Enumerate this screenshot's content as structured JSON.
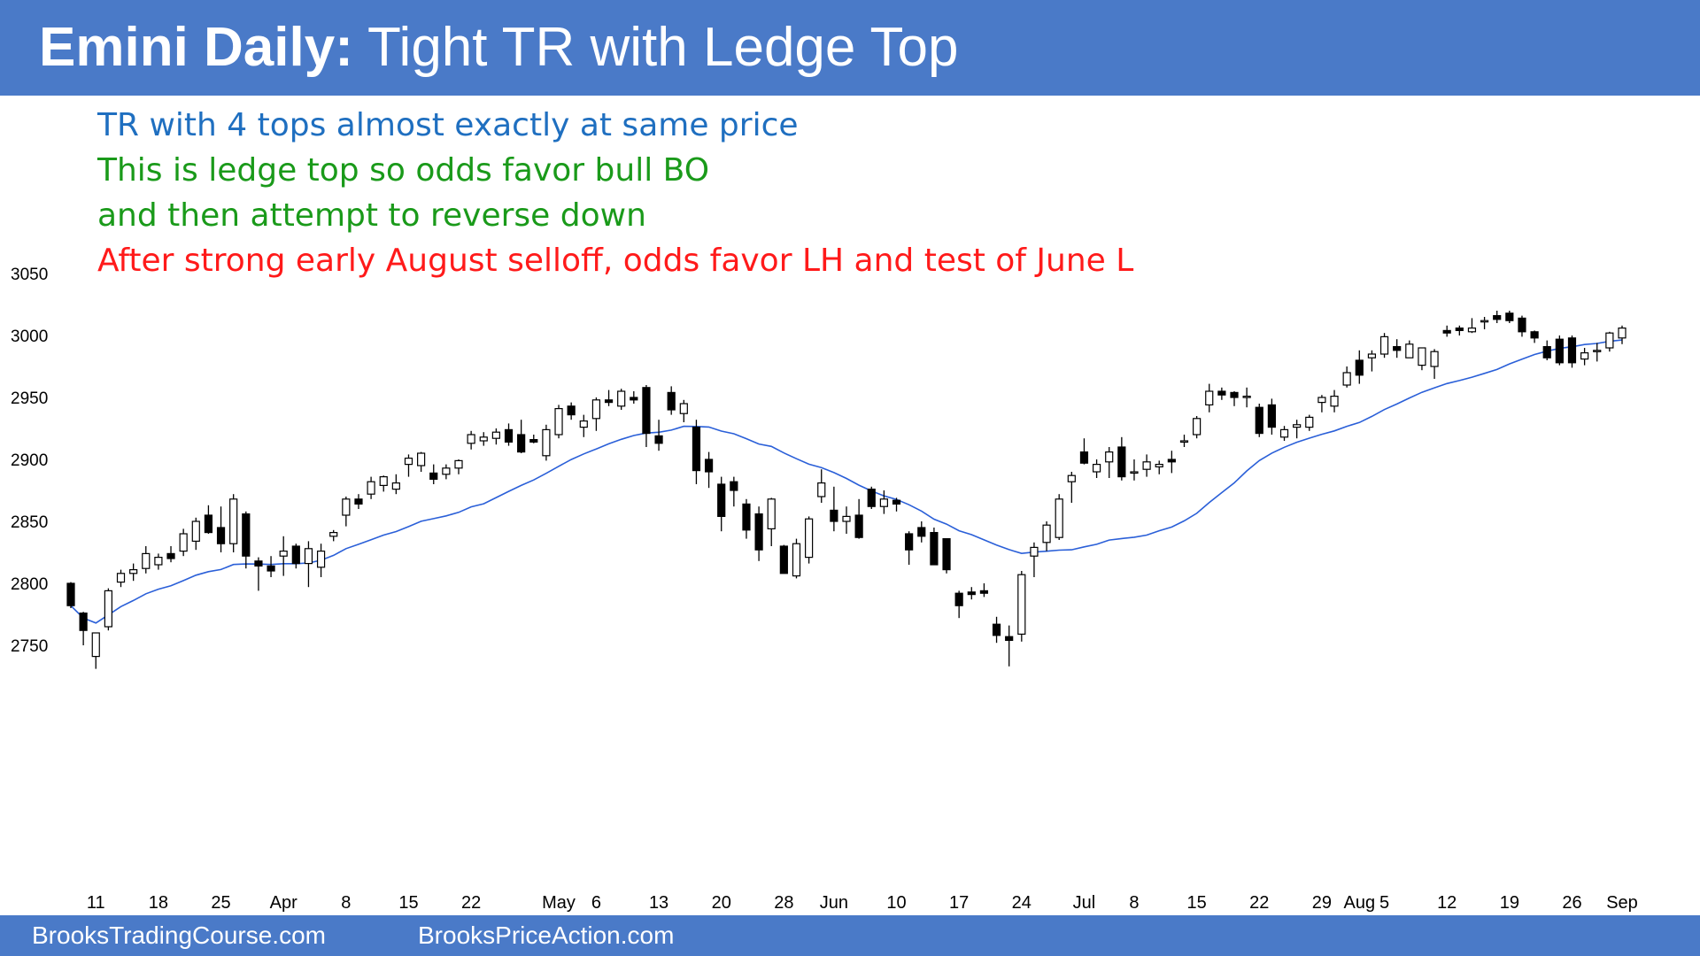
{
  "header": {
    "title_bold": "Emini Daily:",
    "title_rest": "Tight TR with Ledge Top"
  },
  "notes": [
    {
      "text": "TR with 4 tops almost exactly at same price",
      "color": "#1f6fc0"
    },
    {
      "text": "This is ledge top so odds favor bull BO",
      "color": "#1a9a1a"
    },
    {
      "text": "and then attempt to reverse down",
      "color": "#1a9a1a"
    },
    {
      "text": "After strong early August selloff, odds favor LH and test of June L",
      "color": "#ff1a1a"
    }
  ],
  "footer": {
    "left_link": "BrooksTradingCourse.com",
    "right_link": "BrooksPriceAction.com"
  },
  "chart_data": {
    "type": "candlestick",
    "ylim": [
      2720,
      3060
    ],
    "y_ticks": [
      2750,
      2800,
      2850,
      2900,
      2950,
      3000,
      3050
    ],
    "x_ticks": [
      {
        "label": "11",
        "date": "2019-03-11"
      },
      {
        "label": "18",
        "date": "2019-03-18"
      },
      {
        "label": "25",
        "date": "2019-03-25"
      },
      {
        "label": "Apr",
        "date": "2019-04-01"
      },
      {
        "label": "8",
        "date": "2019-04-08"
      },
      {
        "label": "15",
        "date": "2019-04-15"
      },
      {
        "label": "22",
        "date": "2019-04-22"
      },
      {
        "label": "May",
        "date": "2019-05-01"
      },
      {
        "label": "6",
        "date": "2019-05-06"
      },
      {
        "label": "13",
        "date": "2019-05-13"
      },
      {
        "label": "20",
        "date": "2019-05-20"
      },
      {
        "label": "28",
        "date": "2019-05-28"
      },
      {
        "label": "Jun",
        "date": "2019-06-03"
      },
      {
        "label": "10",
        "date": "2019-06-10"
      },
      {
        "label": "17",
        "date": "2019-06-17"
      },
      {
        "label": "24",
        "date": "2019-06-24"
      },
      {
        "label": "Jul",
        "date": "2019-07-01"
      },
      {
        "label": "8",
        "date": "2019-07-08"
      },
      {
        "label": "15",
        "date": "2019-07-15"
      },
      {
        "label": "22",
        "date": "2019-07-22"
      },
      {
        "label": "29",
        "date": "2019-07-29"
      },
      {
        "label": "Aug",
        "date": "2019-08-01"
      },
      {
        "label": "5",
        "date": "2019-08-05"
      },
      {
        "label": "12",
        "date": "2019-08-12"
      },
      {
        "label": "19",
        "date": "2019-08-19"
      },
      {
        "label": "26",
        "date": "2019-08-26"
      },
      {
        "label": "Sep",
        "date": "2019-09-03"
      }
    ],
    "candle_color_up": "#ffffff",
    "candle_color_down": "#000000",
    "ohlc": [
      [
        "2019-03-07",
        2800,
        2801,
        2780,
        2782
      ],
      [
        "2019-03-08",
        2776,
        2777,
        2750,
        2762
      ],
      [
        "2019-03-11",
        2741,
        2760,
        2731,
        2760
      ],
      [
        "2019-03-12",
        2765,
        2796,
        2762,
        2794
      ],
      [
        "2019-03-13",
        2801,
        2811,
        2797,
        2808
      ],
      [
        "2019-03-14",
        2808,
        2816,
        2802,
        2811
      ],
      [
        "2019-03-15",
        2812,
        2830,
        2808,
        2824
      ],
      [
        "2019-03-18",
        2815,
        2824,
        2811,
        2821
      ],
      [
        "2019-03-19",
        2824,
        2830,
        2817,
        2820
      ],
      [
        "2019-03-20",
        2826,
        2844,
        2822,
        2840
      ],
      [
        "2019-03-21",
        2834,
        2853,
        2827,
        2850
      ],
      [
        "2019-03-22",
        2855,
        2863,
        2840,
        2841
      ],
      [
        "2019-03-25",
        2845,
        2862,
        2825,
        2832
      ],
      [
        "2019-03-26",
        2832,
        2872,
        2825,
        2868
      ],
      [
        "2019-03-27",
        2856,
        2858,
        2812,
        2822
      ],
      [
        "2019-03-28",
        2818,
        2821,
        2794,
        2814
      ],
      [
        "2019-03-29",
        2814,
        2822,
        2805,
        2810
      ],
      [
        "2019-04-01",
        2822,
        2838,
        2806,
        2826
      ],
      [
        "2019-04-02",
        2830,
        2832,
        2812,
        2816
      ],
      [
        "2019-04-03",
        2816,
        2834,
        2797,
        2828
      ],
      [
        "2019-04-04",
        2813,
        2832,
        2805,
        2826
      ],
      [
        "2019-04-05",
        2838,
        2843,
        2834,
        2841
      ],
      [
        "2019-04-08",
        2855,
        2870,
        2846,
        2868
      ],
      [
        "2019-04-09",
        2868,
        2872,
        2860,
        2864
      ],
      [
        "2019-04-10",
        2872,
        2886,
        2868,
        2882
      ],
      [
        "2019-04-11",
        2879,
        2887,
        2874,
        2886
      ],
      [
        "2019-04-12",
        2876,
        2888,
        2872,
        2881
      ],
      [
        "2019-04-15",
        2896,
        2904,
        2886,
        2901
      ],
      [
        "2019-04-16",
        2895,
        2906,
        2890,
        2905
      ],
      [
        "2019-04-17",
        2889,
        2896,
        2880,
        2884
      ],
      [
        "2019-04-18",
        2888,
        2896,
        2884,
        2893
      ],
      [
        "2019-04-19",
        2893,
        2900,
        2888,
        2899
      ],
      [
        "2019-04-22",
        2913,
        2923,
        2908,
        2920
      ],
      [
        "2019-04-23",
        2915,
        2922,
        2911,
        2918
      ],
      [
        "2019-04-24",
        2917,
        2925,
        2912,
        2922
      ],
      [
        "2019-04-25",
        2924,
        2929,
        2911,
        2914
      ],
      [
        "2019-04-26",
        2920,
        2932,
        2905,
        2906
      ],
      [
        "2019-04-29",
        2916,
        2920,
        2913,
        2914
      ],
      [
        "2019-04-30",
        2903,
        2928,
        2899,
        2924
      ],
      [
        "2019-05-01",
        2920,
        2944,
        2917,
        2941
      ],
      [
        "2019-05-02",
        2943,
        2946,
        2932,
        2936
      ],
      [
        "2019-05-03",
        2926,
        2936,
        2918,
        2931
      ],
      [
        "2019-05-06",
        2933,
        2950,
        2923,
        2948
      ],
      [
        "2019-05-07",
        2948,
        2956,
        2943,
        2946
      ],
      [
        "2019-05-08",
        2943,
        2957,
        2940,
        2955
      ],
      [
        "2019-05-09",
        2950,
        2955,
        2945,
        2948
      ],
      [
        "2019-05-10",
        2958,
        2960,
        2910,
        2921
      ],
      [
        "2019-05-13",
        2919,
        2932,
        2907,
        2913
      ],
      [
        "2019-05-14",
        2954,
        2959,
        2936,
        2940
      ],
      [
        "2019-05-15",
        2937,
        2948,
        2930,
        2945
      ],
      [
        "2019-05-16",
        2926,
        2932,
        2880,
        2891
      ],
      [
        "2019-05-17",
        2900,
        2906,
        2877,
        2890
      ],
      [
        "2019-05-20",
        2880,
        2886,
        2842,
        2854
      ],
      [
        "2019-05-21",
        2882,
        2886,
        2862,
        2875
      ],
      [
        "2019-05-22",
        2864,
        2868,
        2836,
        2843
      ],
      [
        "2019-05-23",
        2856,
        2862,
        2818,
        2827
      ],
      [
        "2019-05-24",
        2844,
        2869,
        2830,
        2868
      ],
      [
        "2019-05-28",
        2830,
        2831,
        2808,
        2808
      ],
      [
        "2019-05-29",
        2806,
        2836,
        2804,
        2832
      ],
      [
        "2019-05-30",
        2821,
        2854,
        2816,
        2852
      ],
      [
        "2019-05-31",
        2870,
        2892,
        2865,
        2881
      ],
      [
        "2019-06-03",
        2859,
        2878,
        2842,
        2850
      ],
      [
        "2019-06-04",
        2850,
        2862,
        2840,
        2854
      ],
      [
        "2019-06-05",
        2855,
        2868,
        2836,
        2837
      ],
      [
        "2019-06-06",
        2876,
        2878,
        2860,
        2862
      ],
      [
        "2019-06-07",
        2862,
        2875,
        2856,
        2868
      ],
      [
        "2019-06-10",
        2867,
        2869,
        2858,
        2864
      ],
      [
        "2019-06-11",
        2840,
        2842,
        2815,
        2827
      ],
      [
        "2019-06-12",
        2845,
        2850,
        2833,
        2838
      ],
      [
        "2019-06-13",
        2841,
        2845,
        2815,
        2815
      ],
      [
        "2019-06-14",
        2836,
        2836,
        2808,
        2811
      ],
      [
        "2019-06-17",
        2792,
        2794,
        2772,
        2782
      ],
      [
        "2019-06-18",
        2793,
        2797,
        2787,
        2791
      ],
      [
        "2019-06-19",
        2794,
        2800,
        2789,
        2792
      ],
      [
        "2019-06-20",
        2767,
        2773,
        2752,
        2758
      ],
      [
        "2019-06-21",
        2757,
        2766,
        2733,
        2754
      ],
      [
        "2019-06-24",
        2759,
        2810,
        2753,
        2807
      ],
      [
        "2019-06-25",
        2822,
        2833,
        2805,
        2829
      ],
      [
        "2019-06-26",
        2833,
        2850,
        2826,
        2847
      ],
      [
        "2019-06-27",
        2837,
        2872,
        2835,
        2868
      ],
      [
        "2019-06-28",
        2882,
        2890,
        2865,
        2887
      ],
      [
        "2019-07-01",
        2906,
        2917,
        2896,
        2897
      ],
      [
        "2019-07-02",
        2890,
        2900,
        2885,
        2896
      ],
      [
        "2019-07-03",
        2898,
        2910,
        2885,
        2906
      ],
      [
        "2019-07-05",
        2910,
        2918,
        2883,
        2886
      ],
      [
        "2019-07-08",
        2890,
        2900,
        2883,
        2890
      ],
      [
        "2019-07-09",
        2892,
        2904,
        2886,
        2898
      ],
      [
        "2019-07-10",
        2894,
        2899,
        2888,
        2896
      ],
      [
        "2019-07-11",
        2900,
        2907,
        2889,
        2898
      ],
      [
        "2019-07-12",
        2914,
        2920,
        2910,
        2915
      ],
      [
        "2019-07-15",
        2920,
        2935,
        2917,
        2933
      ],
      [
        "2019-07-16",
        2944,
        2961,
        2938,
        2955
      ],
      [
        "2019-07-17",
        2955,
        2958,
        2948,
        2952
      ],
      [
        "2019-07-18",
        2954,
        2955,
        2943,
        2950
      ],
      [
        "2019-07-19",
        2950,
        2958,
        2942,
        2951
      ],
      [
        "2019-07-22",
        2942,
        2945,
        2918,
        2921
      ],
      [
        "2019-07-23",
        2944,
        2949,
        2920,
        2926
      ],
      [
        "2019-07-24",
        2918,
        2927,
        2915,
        2924
      ],
      [
        "2019-07-25",
        2926,
        2932,
        2917,
        2928
      ],
      [
        "2019-07-26",
        2926,
        2936,
        2923,
        2934
      ],
      [
        "2019-07-29",
        2946,
        2952,
        2938,
        2950
      ],
      [
        "2019-07-30",
        2943,
        2956,
        2938,
        2951
      ],
      [
        "2019-07-31",
        2960,
        2975,
        2958,
        2970
      ],
      [
        "2019-08-01",
        2980,
        2988,
        2961,
        2968
      ],
      [
        "2019-08-02",
        2982,
        2988,
        2971,
        2985
      ],
      [
        "2019-08-05",
        2985,
        3002,
        2982,
        2999
      ],
      [
        "2019-08-06",
        2991,
        2997,
        2982,
        2988
      ],
      [
        "2019-08-07",
        2982,
        2996,
        2982,
        2993
      ],
      [
        "2019-08-08",
        2976,
        2990,
        2972,
        2990
      ],
      [
        "2019-08-09",
        2975,
        2989,
        2965,
        2987
      ],
      [
        "2019-08-12",
        3004,
        3008,
        2999,
        3002
      ],
      [
        "2019-08-13",
        3006,
        3008,
        3000,
        3004
      ],
      [
        "2019-08-14",
        3003,
        3014,
        3002,
        3006
      ],
      [
        "2019-08-15",
        3011,
        3015,
        3005,
        3012
      ],
      [
        "2019-08-16",
        3016,
        3020,
        3010,
        3013
      ],
      [
        "2019-08-19",
        3018,
        3020,
        3010,
        3012
      ],
      [
        "2019-08-20",
        3014,
        3016,
        2999,
        3003
      ],
      [
        "2019-08-21",
        3003,
        3004,
        2994,
        2998
      ],
      [
        "2019-08-22",
        2991,
        2996,
        2980,
        2982
      ],
      [
        "2019-08-23",
        2997,
        3000,
        2976,
        2978
      ],
      [
        "2019-08-26",
        2998,
        3000,
        2974,
        2978
      ],
      [
        "2019-08-27",
        2981,
        2990,
        2976,
        2986
      ],
      [
        "2019-08-28",
        2987,
        2994,
        2979,
        2988
      ],
      [
        "2019-08-29",
        2990,
        3003,
        2987,
        3002
      ],
      [
        "2019-08-30",
        2998,
        3008,
        2993,
        3006
      ]
    ]
  }
}
